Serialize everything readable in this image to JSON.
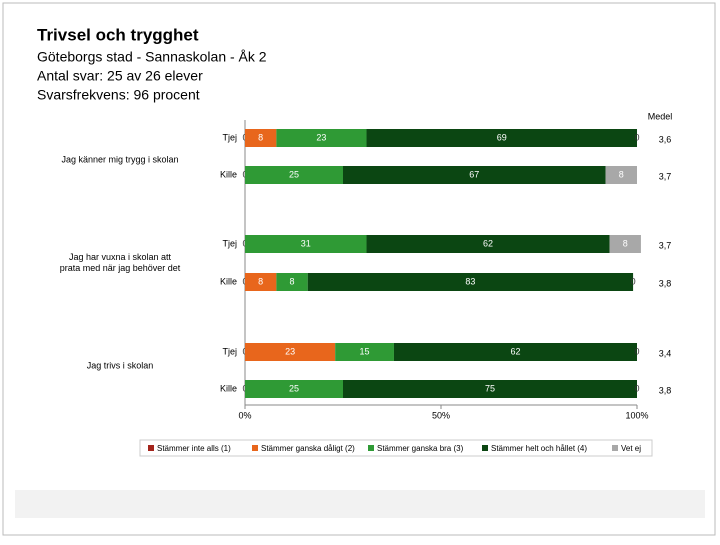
{
  "chart_data": {
    "type": "stacked-bar-horizontal",
    "title": "Trivsel och trygghet",
    "subtitle_lines": [
      "Göteborgs stad - Sannaskolan - Åk 2",
      "Antal svar: 25 av 26 elever",
      "Svarsfrekvens: 96 procent"
    ],
    "groups": [
      {
        "lines": [
          "Jag känner mig trygg i skolan"
        ]
      },
      {
        "lines": [
          "Jag har vuxna i skolan att",
          "prata med när jag behöver det"
        ]
      },
      {
        "lines": [
          "Jag trivs i skolan"
        ]
      }
    ],
    "categories": [
      "Tjej",
      "Kille",
      "Tjej",
      "Kille",
      "Tjej",
      "Kille"
    ],
    "series": [
      {
        "name": "Stämmer inte alls (1)",
        "color": "#a3241b",
        "values": [
          0,
          0,
          0,
          0,
          0,
          0
        ]
      },
      {
        "name": "Stämmer ganska dåligt (2)",
        "color": "#e8661c",
        "values": [
          8,
          0,
          0,
          8,
          23,
          0
        ]
      },
      {
        "name": "Stämmer ganska bra (3)",
        "color": "#2f9a35",
        "values": [
          23,
          25,
          31,
          8,
          15,
          25
        ]
      },
      {
        "name": "Stämmer helt och hållet (4)",
        "color": "#0b4612",
        "values": [
          69,
          67,
          62,
          83,
          62,
          75
        ]
      },
      {
        "name": "Vet ej",
        "color": "#a8a8a8",
        "values": [
          0,
          8,
          8,
          0,
          0,
          0
        ]
      }
    ],
    "medel_title": "Medel",
    "medel": [
      {
        "value": 3.6,
        "label": "3,6"
      },
      {
        "value": 3.7,
        "label": "3,7"
      },
      {
        "value": 3.7,
        "label": "3,7"
      },
      {
        "value": 3.8,
        "label": "3,8"
      },
      {
        "value": 3.4,
        "label": "3,4"
      },
      {
        "value": 3.8,
        "label": "3,8"
      }
    ],
    "xlim": [
      0,
      100
    ],
    "xticks": [
      {
        "value": 0,
        "label": "0%"
      },
      {
        "value": 50,
        "label": "50%"
      },
      {
        "value": 100,
        "label": "100%"
      }
    ]
  }
}
